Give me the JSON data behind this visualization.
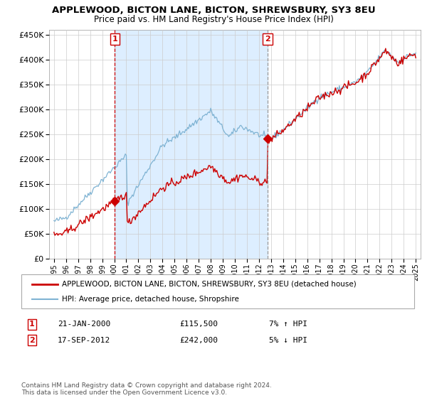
{
  "title": "APPLEWOOD, BICTON LANE, BICTON, SHREWSBURY, SY3 8EU",
  "subtitle": "Price paid vs. HM Land Registry's House Price Index (HPI)",
  "ytick_values": [
    0,
    50000,
    100000,
    150000,
    200000,
    250000,
    300000,
    350000,
    400000,
    450000
  ],
  "ylim": [
    0,
    460000
  ],
  "sale1": {
    "date_label": "21-JAN-2000",
    "price": 115500,
    "year": 2000.05,
    "label": "1",
    "hpi_pct": "7% ↑ HPI"
  },
  "sale2": {
    "date_label": "17-SEP-2012",
    "price": 242000,
    "year": 2012.72,
    "label": "2",
    "hpi_pct": "5% ↓ HPI"
  },
  "legend_house": "APPLEWOOD, BICTON LANE, BICTON, SHREWSBURY, SY3 8EU (detached house)",
  "legend_hpi": "HPI: Average price, detached house, Shropshire",
  "footnote": "Contains HM Land Registry data © Crown copyright and database right 2024.\nThis data is licensed under the Open Government Licence v3.0.",
  "house_color": "#cc0000",
  "hpi_color": "#7fb3d3",
  "shade_color": "#ddeeff",
  "background_color": "#ffffff",
  "grid_color": "#cccccc",
  "sale1_vline_color": "#cc0000",
  "sale2_vline_color": "#999999",
  "xlim": [
    1994.6,
    2025.4
  ]
}
